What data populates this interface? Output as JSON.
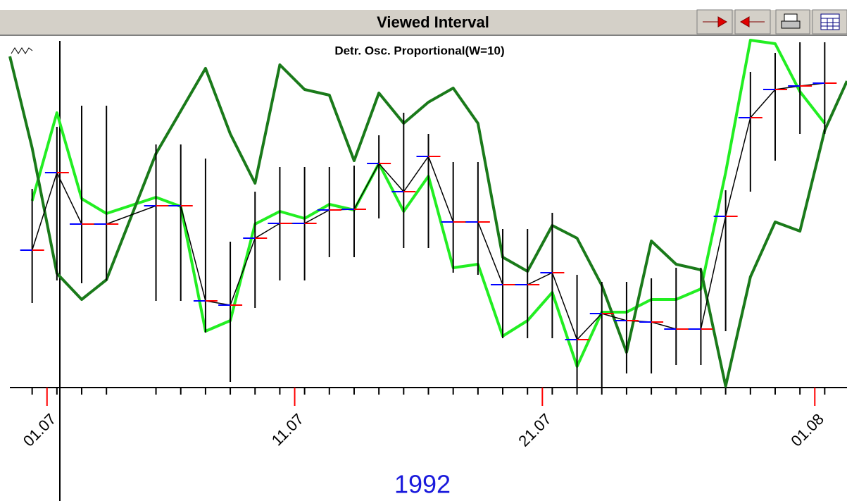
{
  "header": {
    "title": "Viewed Interval"
  },
  "chart_data": {
    "type": "ohlc",
    "subtitle": "Detr. Osc. Proportional(W=10)",
    "year_label": "1992",
    "xlim": [
      -0.5,
      33.3
    ],
    "xticks": [
      {
        "value": 1,
        "label": "01.07"
      },
      {
        "value": 11,
        "label": "11.07"
      },
      {
        "value": 21,
        "label": "21.07"
      },
      {
        "value": 32,
        "label": "01.08"
      }
    ],
    "ylim": [
      0,
      495
    ],
    "bars": {
      "color_open": "#0000ff",
      "color_close": "#ff0000",
      "color": "#000000",
      "x": [
        0.4,
        1.4,
        2.4,
        3.4,
        5.4,
        6.4,
        7.4,
        8.4,
        9.4,
        10.4,
        11.4,
        12.4,
        13.4,
        14.4,
        15.4,
        16.4,
        17.4,
        18.4,
        19.4,
        20.4,
        21.4,
        22.4,
        23.4,
        24.4,
        25.4,
        26.4,
        27.4,
        28.4,
        29.4,
        30.4,
        31.4,
        32.4
      ],
      "high": [
        282,
        370,
        400,
        400,
        345,
        345,
        325,
        207,
        278,
        313,
        313,
        313,
        315,
        358,
        390,
        360,
        320,
        320,
        225,
        225,
        248,
        160,
        150,
        150,
        155,
        170,
        170,
        280,
        448,
        475,
        490,
        490
      ],
      "low": [
        120,
        152,
        148,
        152,
        123,
        123,
        78,
        8,
        113,
        152,
        152,
        185,
        185,
        240,
        198,
        198,
        163,
        160,
        70,
        70,
        70,
        0,
        0,
        20,
        20,
        32,
        32,
        80,
        278,
        322,
        360,
        360
      ],
      "close": [
        195,
        305,
        232,
        232,
        258,
        258,
        123,
        117,
        212,
        233,
        233,
        252,
        253,
        318,
        278,
        328,
        235,
        235,
        146,
        146,
        163,
        68,
        105,
        95,
        93,
        83,
        83,
        243,
        383,
        423,
        428,
        432
      ]
    },
    "lines": [
      {
        "color": "#22ee22",
        "width": 4,
        "x": [
          0.4,
          1.4,
          2.4,
          3.4,
          5.4,
          6.4,
          7.4,
          8.4,
          9.4,
          10.4,
          11.4,
          12.4,
          13.4,
          14.4,
          15.4,
          16.4,
          17.4,
          18.4,
          19.4,
          20.4,
          21.4,
          22.4,
          23.4,
          24.4,
          25.4,
          26.4,
          27.4,
          28.4,
          29.4,
          30.4,
          31.4,
          32.4
        ],
        "values": [
          265,
          390,
          268,
          247,
          270,
          257,
          80,
          95,
          232,
          250,
          240,
          260,
          252,
          318,
          250,
          300,
          170,
          175,
          73,
          95,
          135,
          30,
          107,
          107,
          125,
          125,
          140,
          305,
          493,
          488,
          420,
          375
        ]
      },
      {
        "color": "#1a7a1a",
        "width": 4,
        "x": [
          -0.5,
          0.4,
          1.4,
          2.4,
          3.4,
          5.4,
          7.4,
          8.4,
          9.4,
          10.4,
          11.4,
          12.4,
          13.4,
          14.4,
          15.4,
          16.4,
          17.4,
          18.4,
          19.4,
          20.4,
          21.4,
          22.4,
          23.4,
          24.4,
          25.4,
          26.4,
          27.4,
          28.4,
          29.4,
          30.4,
          31.4,
          32.4,
          33.3
        ],
        "values": [
          470,
          340,
          162,
          125,
          153,
          332,
          453,
          360,
          290,
          458,
          423,
          415,
          322,
          418,
          375,
          405,
          425,
          375,
          185,
          165,
          230,
          212,
          145,
          50,
          208,
          175,
          167,
          2,
          157,
          235,
          222,
          365,
          435
        ]
      }
    ]
  }
}
